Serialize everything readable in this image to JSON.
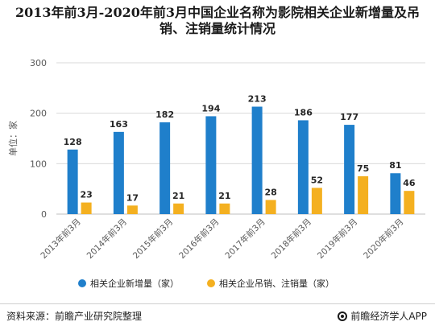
{
  "title": {
    "line1": "2013年前3月-2020年前3月中国企业名称为影院相关企业新增量及吊",
    "line2": "销、注销量统计情况"
  },
  "footer": {
    "source": "资料来源：前瞻产业研究院整理",
    "brand": "前瞻经济学人APP"
  },
  "colors": {
    "blue": "#1f7fcb",
    "orange": "#f4b020",
    "grid": "#d9d9d9",
    "axis_text": "#595959"
  },
  "chart_data": {
    "type": "bar",
    "ylabel": "单位：家",
    "ylim": [
      0,
      300
    ],
    "yticks": [
      0,
      100,
      200,
      300
    ],
    "grid": true,
    "legend_position": "bottom",
    "categories": [
      "2013年前3月",
      "2014年前3月",
      "2015年前3月",
      "2016年前3月",
      "2017年前3月",
      "2018年前3月",
      "2019年前3月",
      "2020年前3月"
    ],
    "series": [
      {
        "name": "相关企业新增量（家）",
        "color": "#1f7fcb",
        "values": [
          128,
          163,
          182,
          194,
          213,
          186,
          177,
          81
        ]
      },
      {
        "name": "相关企业吊销、注销量（家）",
        "color": "#f4b020",
        "values": [
          23,
          17,
          21,
          21,
          28,
          52,
          75,
          46
        ]
      }
    ]
  }
}
